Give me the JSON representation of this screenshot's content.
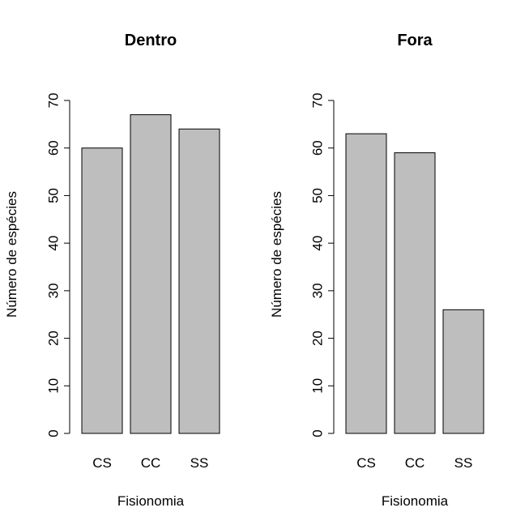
{
  "chart_data": [
    {
      "type": "bar",
      "title": "Dentro",
      "xlabel": "Fisionomia",
      "ylabel": "Número de espécies",
      "categories": [
        "CS",
        "CC",
        "SS"
      ],
      "values": [
        60,
        67,
        64
      ],
      "ylim": [
        0,
        70
      ],
      "yticks": [
        "0",
        "10",
        "20",
        "30",
        "40",
        "50",
        "60",
        "70"
      ],
      "bar_color": "#bebebe",
      "grid": false
    },
    {
      "type": "bar",
      "title": "Fora",
      "xlabel": "Fisionomia",
      "ylabel": "Número de espécies",
      "categories": [
        "CS",
        "CC",
        "SS"
      ],
      "values": [
        63,
        59,
        26
      ],
      "ylim": [
        0,
        70
      ],
      "yticks": [
        "0",
        "10",
        "20",
        "30",
        "40",
        "50",
        "60",
        "70"
      ],
      "bar_color": "#bebebe",
      "grid": false
    }
  ]
}
